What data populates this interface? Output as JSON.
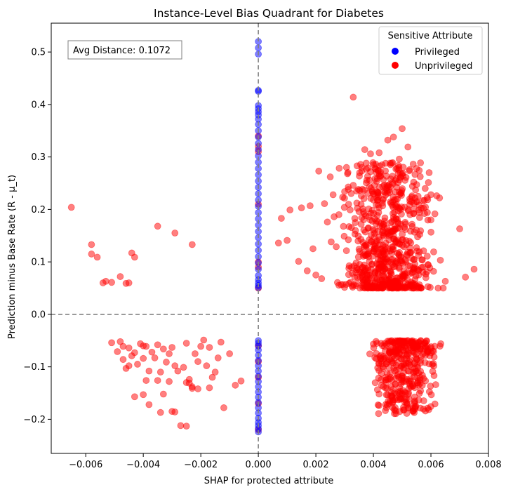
{
  "chart_data": {
    "type": "scatter",
    "title": "Instance-Level Bias Quadrant for Diabetes",
    "xlabel": "SHAP for protected attribute",
    "ylabel": "Prediction minus Base Rate (R - μ_t)",
    "xlim": [
      -0.0072,
      0.008
    ],
    "ylim": [
      -0.265,
      0.555
    ],
    "xticks": [
      -0.006,
      -0.004,
      -0.002,
      0.0,
      0.002,
      0.004,
      0.006,
      0.008
    ],
    "xtick_labels": [
      "−0.006",
      "−0.004",
      "−0.002",
      "0.000",
      "0.002",
      "0.004",
      "0.006",
      "0.008"
    ],
    "yticks": [
      -0.2,
      -0.1,
      0.0,
      0.1,
      0.2,
      0.3,
      0.4,
      0.5
    ],
    "ytick_labels": [
      "−0.2",
      "−0.1",
      "0.0",
      "0.1",
      "0.2",
      "0.3",
      "0.4",
      "0.5"
    ],
    "grid": false,
    "reference_lines": [
      {
        "axis": "x",
        "value": 0.0,
        "style": "dashed",
        "color": "#808080"
      },
      {
        "axis": "y",
        "value": 0.0,
        "style": "dashed",
        "color": "#808080"
      }
    ],
    "annotation": {
      "text": "Avg Distance: 0.1072",
      "position": "top-left"
    },
    "legend": {
      "title": "Sensitive Attribute",
      "placement": "top-right",
      "entries": [
        {
          "label": "Privileged",
          "color": "#0000ff"
        },
        {
          "label": "Unprivileged",
          "color": "#ff0000"
        }
      ]
    },
    "series": [
      {
        "name": "Privileged",
        "color": "#0000ff",
        "alpha": 0.5,
        "points": [
          [
            0,
            0.52
          ],
          [
            0,
            0.508
          ],
          [
            0,
            0.496
          ],
          [
            0,
            0.427
          ],
          [
            0,
            0.425
          ],
          [
            0,
            0.398
          ],
          [
            0,
            0.392
          ],
          [
            0,
            0.386
          ],
          [
            0,
            0.38
          ],
          [
            0,
            0.372
          ],
          [
            0,
            0.362
          ],
          [
            0,
            0.35
          ],
          [
            0,
            0.338
          ],
          [
            0,
            0.326
          ],
          [
            0,
            0.314
          ],
          [
            0,
            0.302
          ],
          [
            0,
            0.29
          ],
          [
            0,
            0.278
          ],
          [
            0,
            0.266
          ],
          [
            0,
            0.254
          ],
          [
            0,
            0.242
          ],
          [
            0,
            0.23
          ],
          [
            0,
            0.218
          ],
          [
            0,
            0.206
          ],
          [
            0,
            0.194
          ],
          [
            0,
            0.182
          ],
          [
            0,
            0.17
          ],
          [
            0,
            0.158
          ],
          [
            0,
            0.146
          ],
          [
            0,
            0.134
          ],
          [
            0,
            0.122
          ],
          [
            0,
            0.11
          ],
          [
            0,
            0.098
          ],
          [
            0,
            0.086
          ],
          [
            0,
            0.074
          ],
          [
            0,
            0.066
          ],
          [
            0,
            0.06
          ],
          [
            0,
            0.055
          ],
          [
            0,
            0.051
          ],
          [
            0,
            -0.05
          ],
          [
            0,
            -0.055
          ],
          [
            0,
            -0.06
          ],
          [
            0,
            -0.068
          ],
          [
            0,
            -0.078
          ],
          [
            0,
            -0.088
          ],
          [
            0,
            -0.098
          ],
          [
            0,
            -0.108
          ],
          [
            0,
            -0.118
          ],
          [
            0,
            -0.128
          ],
          [
            0,
            -0.138
          ],
          [
            0,
            -0.148
          ],
          [
            0,
            -0.158
          ],
          [
            0,
            -0.168
          ],
          [
            0,
            -0.178
          ],
          [
            0,
            -0.188
          ],
          [
            0,
            -0.198
          ],
          [
            0,
            -0.206
          ],
          [
            0,
            -0.212
          ],
          [
            0,
            -0.218
          ],
          [
            0,
            -0.224
          ]
        ]
      },
      {
        "name": "Unprivileged",
        "color": "#ff0000",
        "alpha": 0.5,
        "points": [
          [
            -0.0065,
            0.204
          ],
          [
            -0.0058,
            0.133
          ],
          [
            -0.0058,
            0.115
          ],
          [
            -0.0056,
            0.109
          ],
          [
            -0.0054,
            0.06
          ],
          [
            -0.0053,
            0.063
          ],
          [
            -0.0051,
            0.061
          ],
          [
            -0.0048,
            0.072
          ],
          [
            -0.0046,
            0.059
          ],
          [
            -0.0045,
            0.06
          ],
          [
            -0.0044,
            0.117
          ],
          [
            -0.0043,
            0.109
          ],
          [
            -0.0035,
            0.168
          ],
          [
            -0.0029,
            0.155
          ],
          [
            -0.0023,
            0.133
          ],
          [
            0,
            0.34
          ],
          [
            0,
            0.32
          ],
          [
            0,
            0.31
          ],
          [
            0,
            0.21
          ],
          [
            0,
            0.1
          ],
          [
            0,
            0.09
          ],
          [
            0,
            0.05
          ],
          [
            -0.0051,
            -0.054
          ],
          [
            -0.0049,
            -0.071
          ],
          [
            -0.0048,
            -0.052
          ],
          [
            -0.0047,
            -0.061
          ],
          [
            -0.0047,
            -0.086
          ],
          [
            -0.0046,
            -0.103
          ],
          [
            -0.0045,
            -0.064
          ],
          [
            -0.0045,
            -0.098
          ],
          [
            -0.0044,
            -0.079
          ],
          [
            -0.0043,
            -0.073
          ],
          [
            -0.0042,
            -0.095
          ],
          [
            -0.0041,
            -0.056
          ],
          [
            -0.004,
            -0.06
          ],
          [
            -0.004,
            -0.084
          ],
          [
            -0.0039,
            -0.061
          ],
          [
            -0.0038,
            -0.108
          ],
          [
            -0.0037,
            -0.072
          ],
          [
            -0.0036,
            -0.083
          ],
          [
            -0.0035,
            -0.058
          ],
          [
            -0.0034,
            -0.11
          ],
          [
            -0.0033,
            -0.066
          ],
          [
            -0.0032,
            -0.091
          ],
          [
            -0.0031,
            -0.075
          ],
          [
            -0.0031,
            -0.128
          ],
          [
            -0.003,
            -0.063
          ],
          [
            -0.0029,
            -0.098
          ],
          [
            -0.0028,
            -0.108
          ],
          [
            -0.0026,
            -0.101
          ],
          [
            -0.0025,
            -0.055
          ],
          [
            -0.0024,
            -0.124
          ],
          [
            -0.0023,
            -0.138
          ],
          [
            -0.0022,
            -0.075
          ],
          [
            -0.0021,
            -0.09
          ],
          [
            -0.002,
            -0.061
          ],
          [
            -0.0019,
            -0.049
          ],
          [
            -0.0018,
            -0.098
          ],
          [
            -0.0017,
            -0.063
          ],
          [
            -0.0016,
            -0.12
          ],
          [
            -0.0015,
            -0.11
          ],
          [
            -0.0014,
            -0.083
          ],
          [
            -0.0013,
            -0.053
          ],
          [
            -0.0012,
            -0.178
          ],
          [
            -0.001,
            -0.075
          ],
          [
            -0.0008,
            -0.135
          ],
          [
            -0.0006,
            -0.127
          ],
          [
            -0.0043,
            -0.157
          ],
          [
            -0.004,
            -0.153
          ],
          [
            -0.0039,
            -0.126
          ],
          [
            -0.0038,
            -0.172
          ],
          [
            -0.0035,
            -0.126
          ],
          [
            -0.0034,
            -0.187
          ],
          [
            -0.0033,
            -0.152
          ],
          [
            -0.003,
            -0.185
          ],
          [
            -0.0029,
            -0.186
          ],
          [
            -0.0027,
            -0.212
          ],
          [
            -0.0025,
            -0.213
          ],
          [
            -0.0025,
            -0.13
          ],
          [
            -0.0024,
            -0.131
          ],
          [
            -0.0023,
            -0.141
          ],
          [
            -0.0021,
            -0.142
          ],
          [
            -0.0017,
            -0.14
          ],
          [
            0,
            -0.06
          ],
          [
            0,
            -0.09
          ],
          [
            0,
            -0.12
          ],
          [
            0,
            -0.17
          ],
          [
            0,
            -0.22
          ],
          [
            0.0033,
            0.414
          ],
          [
            0.005,
            0.354
          ],
          [
            0.0047,
            0.338
          ],
          [
            0.0045,
            0.332
          ],
          [
            0.0052,
            0.319
          ],
          [
            0.0037,
            0.314
          ],
          [
            0.0042,
            0.308
          ],
          [
            0.0039,
            0.306
          ],
          [
            0.0049,
            0.296
          ],
          [
            0.0043,
            0.285
          ],
          [
            0.0036,
            0.28
          ],
          [
            0.0055,
            0.278
          ],
          [
            0.0021,
            0.273
          ],
          [
            0.0031,
            0.268
          ],
          [
            0.0025,
            0.262
          ],
          [
            0.0046,
            0.258
          ],
          [
            0.0054,
            0.252
          ],
          [
            0.0033,
            0.246
          ],
          [
            0.0058,
            0.24
          ],
          [
            0.003,
            0.234
          ],
          [
            0.0026,
            0.228
          ],
          [
            0.0062,
            0.226
          ],
          [
            0.0063,
            0.222
          ],
          [
            0.004,
            0.218
          ],
          [
            0.0023,
            0.211
          ],
          [
            0.0018,
            0.207
          ],
          [
            0.0015,
            0.203
          ],
          [
            0.0011,
            0.199
          ],
          [
            0.0035,
            0.196
          ],
          [
            0.0028,
            0.19
          ],
          [
            0.0047,
            0.185
          ],
          [
            0.0008,
            0.183
          ],
          [
            0.006,
            0.18
          ],
          [
            0.0024,
            0.176
          ],
          [
            0.007,
            0.163
          ],
          [
            0.001,
            0.141
          ],
          [
            0.0007,
            0.136
          ],
          [
            0.0019,
            0.125
          ],
          [
            0.0014,
            0.101
          ],
          [
            0.0017,
            0.083
          ],
          [
            0.002,
            0.075
          ],
          [
            0.0022,
            0.068
          ],
          [
            0.0075,
            0.086
          ],
          [
            0.0072,
            0.071
          ],
          [
            0.0065,
            0.063
          ]
        ],
        "clusters": [
          {
            "x_range": [
              0.0023,
              0.0066
            ],
            "y_range": [
              0.05,
              0.29
            ],
            "count": 720
          },
          {
            "x_range": [
              0.0036,
              0.0066
            ],
            "y_range": [
              -0.19,
              -0.05
            ],
            "count": 380
          }
        ]
      }
    ]
  }
}
